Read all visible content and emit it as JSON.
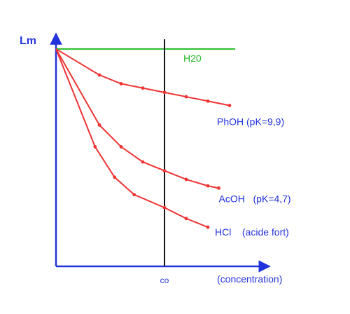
{
  "chart_data": {
    "type": "line",
    "ylabel": "Lm",
    "xlabel": "(concentration)",
    "x_marker": {
      "label": "co",
      "x": 0.5
    },
    "reference_line": {
      "name": "H20",
      "y": 1.0,
      "color": "#22bb22"
    },
    "xlim": [
      0,
      1
    ],
    "ylim": [
      0,
      1.08
    ],
    "axis_color": "#2233dd",
    "series_color": "#ee3333",
    "series": [
      {
        "name": "PhOH (pK=9,9)",
        "x": [
          0,
          0.2,
          0.3,
          0.4,
          0.5,
          0.6,
          0.7,
          0.8
        ],
        "values": [
          1.0,
          0.88,
          0.84,
          0.82,
          0.8,
          0.78,
          0.76,
          0.74
        ]
      },
      {
        "name": "AcOH   (pK=4,7)",
        "x": [
          0,
          0.2,
          0.3,
          0.4,
          0.5,
          0.6,
          0.7,
          0.75
        ],
        "values": [
          1.0,
          0.65,
          0.55,
          0.48,
          0.44,
          0.4,
          0.37,
          0.36
        ]
      },
      {
        "name": "HCl    (acide fort)",
        "x": [
          0,
          0.18,
          0.27,
          0.36,
          0.5,
          0.6,
          0.7
        ],
        "values": [
          1.0,
          0.55,
          0.41,
          0.33,
          0.27,
          0.22,
          0.18
        ]
      }
    ]
  }
}
